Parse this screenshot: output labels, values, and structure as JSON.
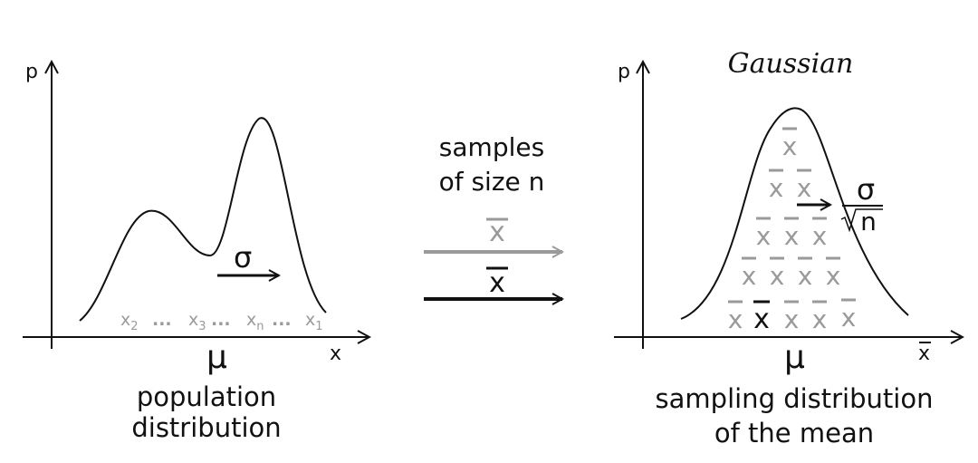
{
  "left_panel": {
    "y_axis_label": "p",
    "x_axis_label": "x",
    "mean_symbol": "μ",
    "sigma_symbol": "σ",
    "samples": [
      {
        "base": "x",
        "sub": "2"
      },
      {
        "base": "x",
        "sub": "3"
      },
      {
        "base": "x",
        "sub": "n"
      },
      {
        "base": "x",
        "sub": "1"
      }
    ],
    "ellipsis": "...",
    "caption_line1": "population",
    "caption_line2": "distribution"
  },
  "middle": {
    "label_line1": "samples",
    "label_line2": "of size n",
    "gray_arrow_label": "x̄",
    "black_arrow_label": "x̄"
  },
  "right_panel": {
    "title": "Gaussian",
    "y_axis_label": "p",
    "x_axis_label": "x̄",
    "mean_symbol": "μ",
    "se_numerator": "σ",
    "se_denominator": "n",
    "sample_mean_symbol": "x",
    "caption_line1": "sampling distribution",
    "caption_line2": "of the mean"
  },
  "colors": {
    "ink": "#111111",
    "gray": "#9a9a9a"
  }
}
